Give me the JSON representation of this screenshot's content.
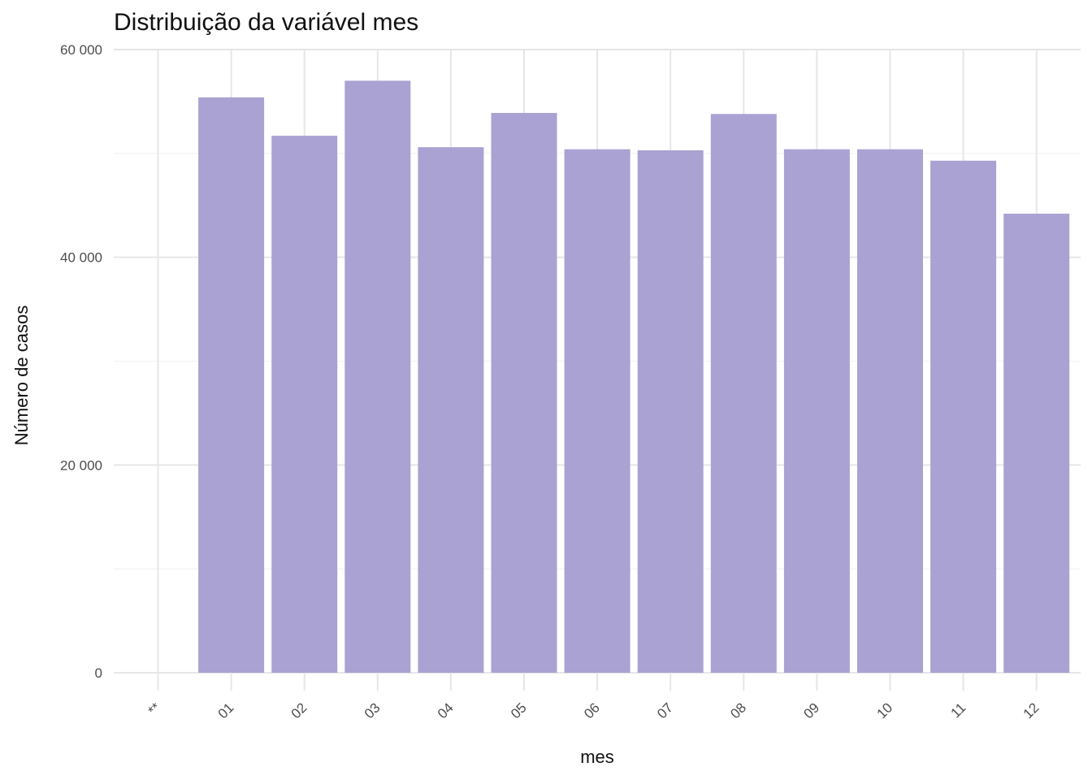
{
  "chart_data": {
    "type": "bar",
    "title": "Distribuição da variável  mes",
    "xlabel": "mes",
    "ylabel": "Número de casos",
    "categories": [
      "**",
      "01",
      "02",
      "03",
      "04",
      "05",
      "06",
      "07",
      "08",
      "09",
      "10",
      "11",
      "12"
    ],
    "values": [
      0,
      55400,
      51700,
      57000,
      50600,
      53900,
      50400,
      50300,
      53800,
      50400,
      50400,
      49300,
      44200
    ],
    "ylim": [
      0,
      60000
    ],
    "y_ticks": [
      0,
      20000,
      40000,
      60000
    ],
    "y_tick_labels": [
      "0",
      "20 000",
      "40 000",
      "60 000"
    ],
    "x_tick_rotation": "45deg",
    "grid": true,
    "legend": "none",
    "bar_color": "#AAA2D2"
  }
}
